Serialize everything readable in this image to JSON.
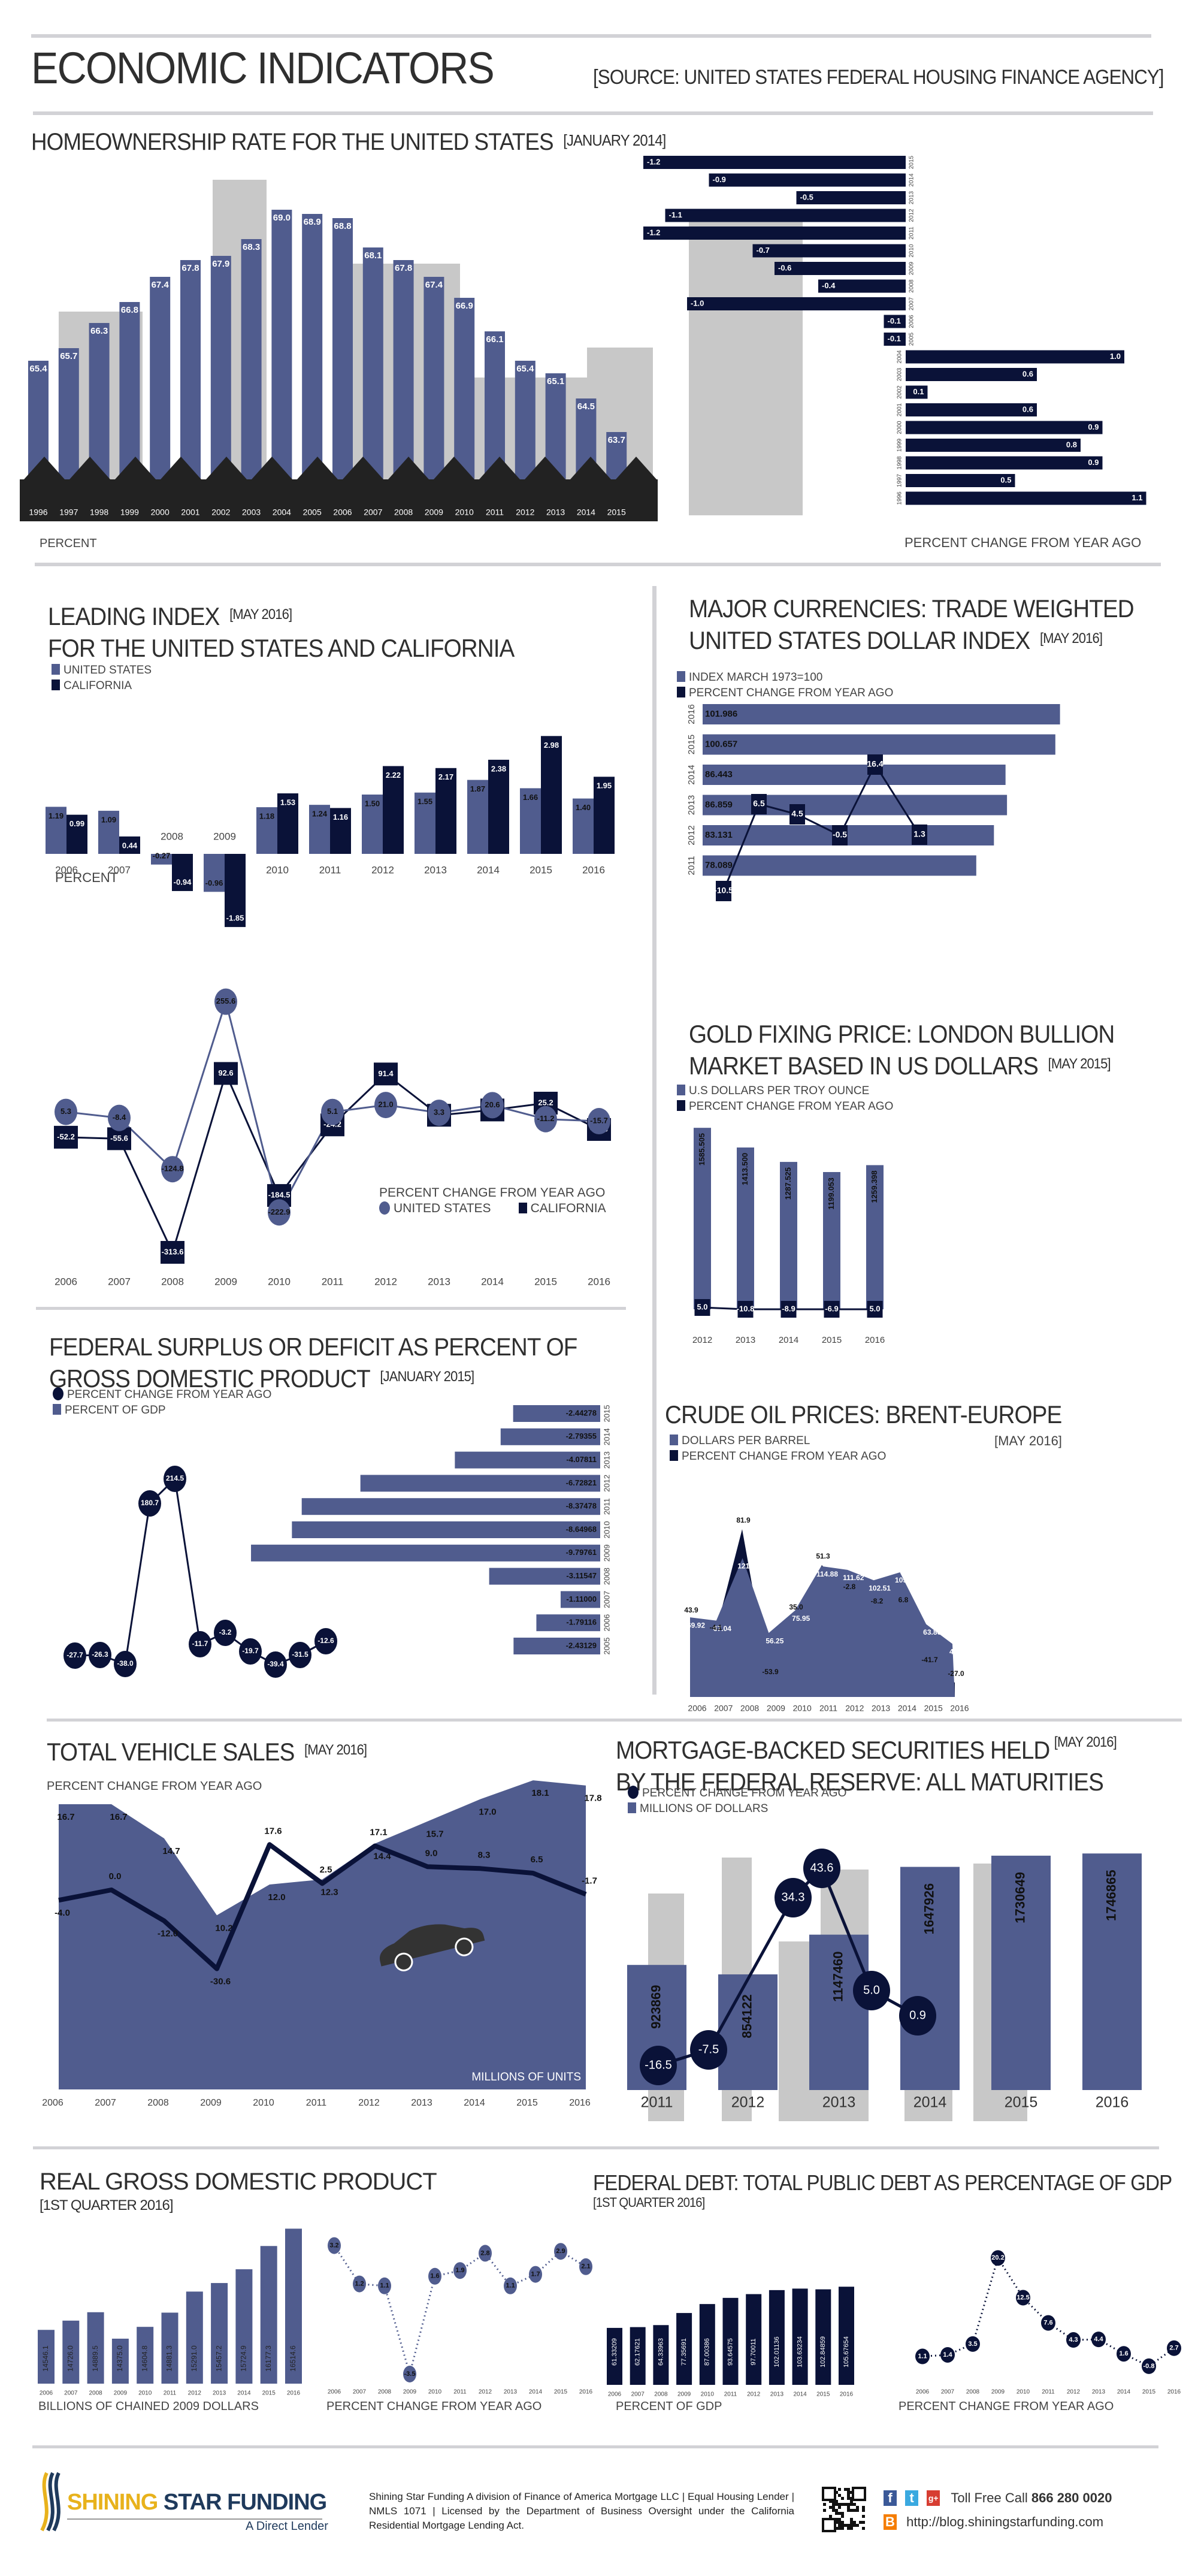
{
  "colors": {
    "light": "#505c8e",
    "dark": "#0a1238",
    "gray": "#c8c8c8",
    "ground": "#222222"
  },
  "header": {
    "title": "ECONOMIC INDICATORS",
    "source": "[SOURCE: UNITED STATES FEDERAL HOUSING FINANCE AGENCY]"
  },
  "homeownership": {
    "title": "HOMEOWNERSHIP RATE FOR THE UNITED STATES",
    "date": "[JANUARY 2014]",
    "left_label": "PERCENT",
    "right_label": "PERCENT CHANGE FROM YEAR AGO"
  },
  "leading": {
    "title_line1": "LEADING INDEX",
    "date": "[MAY 2016]",
    "title_line2": "FOR THE UNITED STATES AND CALIFORNIA",
    "legend": [
      "UNITED STATES",
      "CALIFORNIA"
    ],
    "bar_axis_label": "PERCENT",
    "line_legend_title": "PERCENT CHANGE FROM YEAR AGO",
    "line_legend": [
      "UNITED STATES",
      "CALIFORNIA"
    ]
  },
  "currencies": {
    "title_line1": "MAJOR CURRENCIES: TRADE WEIGHTED",
    "title_line2": "UNITED STATES DOLLAR INDEX",
    "date": "[MAY 2016]",
    "legend": [
      "INDEX MARCH 1973=100",
      "PERCENT CHANGE FROM YEAR AGO"
    ]
  },
  "gold": {
    "title_line1": "GOLD FIXING PRICE: LONDON BULLION",
    "title_line2": "MARKET BASED IN US DOLLARS",
    "date": "[MAY 2015]",
    "legend": [
      "U.S DOLLARS PER TROY OUNCE",
      "PERCENT CHANGE FROM YEAR AGO"
    ]
  },
  "deficit": {
    "title_line1": "FEDERAL SURPLUS OR DEFICIT AS PERCENT OF",
    "title_line2": "GROSS DOMESTIC PRODUCT",
    "date": "[JANUARY 2015]",
    "legend": [
      "PERCENT CHANGE FROM YEAR AGO",
      "PERCENT OF GDP"
    ]
  },
  "oil": {
    "title": "CRUDE OIL PRICES: BRENT-EUROPE",
    "date": "[MAY 2016]",
    "legend": [
      "DOLLARS PER BARREL",
      "PERCENT CHANGE FROM YEAR AGO"
    ]
  },
  "vehicles": {
    "title": "TOTAL VEHICLE SALES",
    "date": "[MAY 2016]",
    "line_label": "PERCENT CHANGE FROM YEAR AGO",
    "area_label": "MILLIONS OF UNITS"
  },
  "mbs": {
    "title_line1": "MORTGAGE-BACKED SECURITIES HELD",
    "date": "[MAY 2016]",
    "title_line2": "BY THE FEDERAL RESERVE: ALL MATURITIES",
    "legend": [
      "PERCENT CHANGE FROM YEAR AGO",
      "MILLIONS OF DOLLARS"
    ]
  },
  "gdp": {
    "title": "REAL GROSS DOMESTIC PRODUCT",
    "date": "[1ST QUARTER 2016]",
    "bar_label": "BILLIONS OF CHAINED 2009 DOLLARS",
    "line_label": "PERCENT CHANGE FROM YEAR AGO"
  },
  "debt": {
    "title": "FEDERAL DEBT: TOTAL PUBLIC DEBT AS PERCENTAGE OF GDP",
    "date": "[1ST QUARTER 2016]",
    "bar_label": "PERCENT OF GDP",
    "line_label": "PERCENT CHANGE FROM YEAR AGO"
  },
  "footer": {
    "logo_word1": "SHINING",
    "logo_word2": "STAR FUNDING",
    "logo_tagline": "A Direct Lender",
    "disclaimer": "Shining Star Funding A division of Finance of America Mortgage LLC | Equal Housing Lender | NMLS 1071 | Licensed by the Department of Business Oversight under the California Residential Mortgage Lending Act.",
    "toll_free_label": "Toll Free Call",
    "phone": "866 280 0020",
    "blog_url": "http://blog.shiningstarfunding.com",
    "icons": [
      "qr-code",
      "facebook-icon",
      "twitter-icon",
      "google-plus-icon",
      "blogger-icon"
    ]
  },
  "chart_data": [
    {
      "id": "homeownership",
      "type": "bar",
      "title": "HOMEOWNERSHIP RATE FOR THE UNITED STATES",
      "categories": [
        "1996",
        "1997",
        "1998",
        "1999",
        "2000",
        "2001",
        "2002",
        "2003",
        "2004",
        "2005",
        "2006",
        "2007",
        "2008",
        "2009",
        "2010",
        "2011",
        "2012",
        "2013",
        "2014",
        "2015"
      ],
      "values": [
        65.4,
        65.7,
        66.3,
        66.8,
        67.4,
        67.8,
        67.9,
        68.3,
        69.0,
        68.9,
        68.8,
        68.1,
        67.8,
        67.4,
        66.9,
        66.1,
        65.4,
        65.1,
        64.5,
        63.7
      ],
      "ylabel": "PERCENT"
    },
    {
      "id": "homeownership_change",
      "type": "bar",
      "orientation": "horizontal",
      "categories": [
        "2015",
        "2014",
        "2013",
        "2012",
        "2011",
        "2010",
        "2009",
        "2008",
        "2007",
        "2006",
        "2005",
        "2004",
        "2003",
        "2002",
        "2001",
        "2000",
        "1999",
        "1998",
        "1997",
        "1996"
      ],
      "values": [
        -1.2,
        -0.9,
        -0.5,
        -1.1,
        -1.2,
        -0.7,
        -0.6,
        -0.4,
        -1.0,
        -0.1,
        -0.1,
        1.0,
        0.6,
        0.1,
        0.6,
        0.9,
        0.8,
        0.9,
        0.5,
        1.1
      ],
      "labels": [
        "-1.2",
        "-0.9",
        "-0.5",
        "-1.1",
        "-1.2",
        "-0.7",
        "-0.6",
        "-0.4",
        "-1.0",
        "-0.1",
        "-0.1",
        "1.0",
        "0.6",
        "0.1",
        "0.6",
        "0.9",
        "0.8",
        "0.9",
        "0.5",
        "1.1"
      ],
      "xlabel": "PERCENT CHANGE FROM YEAR AGO"
    },
    {
      "id": "leading_bars",
      "type": "bar",
      "categories": [
        "2006",
        "2007",
        "2008",
        "2009",
        "2010",
        "2011",
        "2012",
        "2013",
        "2014",
        "2015",
        "2016"
      ],
      "series": [
        {
          "name": "UNITED STATES",
          "values": [
            1.19,
            1.09,
            -0.27,
            -0.96,
            1.18,
            1.24,
            1.5,
            1.55,
            1.87,
            1.66,
            1.4
          ],
          "labels": [
            "1.19",
            "1.09",
            "-0.27",
            "-0.96",
            "1.18",
            "1.24",
            "1.50",
            "1.55",
            "1.87",
            "1.66",
            "1.40"
          ]
        },
        {
          "name": "CALIFORNIA",
          "values": [
            0.99,
            0.44,
            -0.94,
            -1.85,
            1.53,
            1.16,
            2.22,
            2.17,
            2.38,
            2.98,
            1.95
          ],
          "labels": [
            "0.99",
            "0.44",
            "-0.94",
            "-1.85",
            "1.53",
            "1.16",
            "2.22",
            "2.17",
            "2.38",
            "2.98",
            "1.95"
          ]
        }
      ],
      "ylabel": "PERCENT"
    },
    {
      "id": "leading_change",
      "type": "line",
      "categories": [
        "2006",
        "2007",
        "2008",
        "2009",
        "2010",
        "2011",
        "2012",
        "2013",
        "2014",
        "2015",
        "2016"
      ],
      "series": [
        {
          "name": "UNITED STATES",
          "values": [
            5.3,
            -8.4,
            -124.8,
            255.6,
            -222.9,
            5.1,
            21.0,
            3.3,
            20.6,
            -11.2,
            -15.7
          ],
          "labels": [
            "5.3",
            "-8.4",
            "-124.8",
            "255.6",
            "-222.9",
            "5.1",
            "21.0",
            "3.3",
            "20.6",
            "-11.2",
            "-15.7"
          ]
        },
        {
          "name": "CALIFORNIA",
          "values": [
            -52.2,
            -55.6,
            -313.6,
            92.6,
            -184.5,
            -24.2,
            91.4,
            -2.3,
            9.7,
            25.2,
            -34.6
          ],
          "labels": [
            "-52.2",
            "-55.6",
            "-313.6",
            "92.6",
            "-184.5",
            "-24.2",
            "91.4",
            "-2.3",
            "9.7",
            "25.2",
            "-34.6"
          ]
        }
      ]
    },
    {
      "id": "currencies",
      "type": "bar",
      "orientation": "horizontal",
      "categories": [
        "2016",
        "2015",
        "2014",
        "2013",
        "2012",
        "2011"
      ],
      "values": [
        101.986,
        100.657,
        86.443,
        86.859,
        83.131,
        78.089
      ],
      "labels": [
        "101.986",
        "100.657",
        "86.443",
        "86.859",
        "83.131",
        "78.089"
      ],
      "line": {
        "name": "PERCENT CHANGE FROM YEAR AGO",
        "values": [
          -10.5,
          6.5,
          4.5,
          -0.5,
          16.4,
          1.3
        ],
        "labels": [
          "-10.5",
          "6.5",
          "4.5",
          "-0.5",
          "16.4",
          "1.3"
        ]
      }
    },
    {
      "id": "gold",
      "type": "bar",
      "categories": [
        "2012",
        "2013",
        "2014",
        "2015",
        "2016"
      ],
      "values": [
        1585.505,
        1413.5,
        1287.525,
        1199.053,
        1259.398
      ],
      "labels": [
        "1585.505",
        "1413.500",
        "1287.525",
        "1199.053",
        "1259.398"
      ],
      "line": {
        "name": "PERCENT CHANGE FROM YEAR AGO",
        "values": [
          5.0,
          -10.8,
          -8.9,
          -6.9,
          5.0
        ],
        "labels": [
          "5.0",
          "-10.8",
          "-8.9",
          "-6.9",
          "5.0"
        ]
      }
    },
    {
      "id": "deficit",
      "type": "bar",
      "orientation": "horizontal",
      "categories": [
        "2015",
        "2014",
        "2013",
        "2012",
        "2011",
        "2010",
        "2009",
        "2008",
        "2007",
        "2006",
        "2005"
      ],
      "values": [
        -2.44278,
        -2.79355,
        -4.07811,
        -6.72821,
        -8.37478,
        -8.64968,
        -9.79761,
        -3.11547,
        -1.11,
        -1.79116,
        -2.43129
      ],
      "labels": [
        "-2.44278",
        "-2.79355",
        "-4.07811",
        "-6.72821",
        "-8.37478",
        "-8.64968",
        "-9.79761",
        "-3.11547",
        "-1.11000",
        "-1.79116",
        "-2.43129"
      ],
      "line": {
        "name": "PERCENT CHANGE FROM YEAR AGO",
        "values": [
          -27.7,
          -26.3,
          -38.0,
          180.7,
          214.5,
          -11.7,
          -3.2,
          -19.7,
          -39.4,
          -31.5,
          -12.6
        ],
        "labels": [
          "-27.7",
          "-26.3",
          "-38.0",
          "180.7",
          "214.5",
          "-11.7",
          "-3.2",
          "-19.7",
          "-39.4",
          "-31.5",
          "-12.6"
        ]
      }
    },
    {
      "id": "oil",
      "type": "area",
      "categories": [
        "2006",
        "2007",
        "2008",
        "2009",
        "2010",
        "2011",
        "2012",
        "2013",
        "2014",
        "2015",
        "2016"
      ],
      "series": [
        {
          "name": "DOLLARS PER BARREL",
          "values": [
            69.92,
            67.04,
            121.93,
            56.25,
            75.95,
            114.88,
            111.62,
            102.51,
            109.5,
            63.86,
            46.62
          ],
          "labels": [
            "69.92",
            "67.04",
            "121.93",
            "56.25",
            "75.95",
            "114.88",
            "111.62",
            "102.51",
            "109.50",
            "63.86",
            "46.62"
          ]
        },
        {
          "name": "PERCENT CHANGE FROM YEAR AGO",
          "values": [
            43.9,
            -4.1,
            81.9,
            -53.9,
            35.0,
            51.3,
            -2.8,
            -8.2,
            6.8,
            -41.7,
            -27.0
          ],
          "labels": [
            "43.9",
            "-4.1",
            "81.9",
            "-53.9",
            "35.0",
            "51.3",
            "-2.8",
            "-8.2",
            "6.8",
            "-41.7",
            "-27.0"
          ]
        }
      ]
    },
    {
      "id": "vehicles",
      "type": "area",
      "categories": [
        "2006",
        "2007",
        "2008",
        "2009",
        "2010",
        "2011",
        "2012",
        "2013",
        "2014",
        "2015",
        "2016"
      ],
      "series": [
        {
          "name": "MILLIONS OF UNITS",
          "values": [
            16.7,
            16.7,
            14.7,
            10.2,
            12.0,
            12.3,
            14.4,
            15.7,
            17.0,
            18.1,
            17.8
          ],
          "labels": [
            "16.7",
            "16.7",
            "14.7",
            "10.2",
            "12.0",
            "12.3",
            "14.4",
            "15.7",
            "17.0",
            "18.1",
            "17.8"
          ]
        },
        {
          "name": "PERCENT CHANGE FROM YEAR AGO",
          "values": [
            -4.0,
            0.0,
            -12.0,
            -30.6,
            17.6,
            2.5,
            17.1,
            9.0,
            8.3,
            6.5,
            -1.7
          ],
          "labels": [
            "-4.0",
            "0.0",
            "-12.0",
            "-30.6",
            "17.6",
            "2.5",
            "17.1",
            "9.0",
            "8.3",
            "6.5",
            "-1.7"
          ]
        }
      ]
    },
    {
      "id": "mbs",
      "type": "bar",
      "categories": [
        "2011",
        "2012",
        "2013",
        "2014",
        "2015",
        "2016"
      ],
      "values": [
        923869,
        854122,
        1147460,
        1647926,
        1730649,
        1746865
      ],
      "labels": [
        "923869",
        "854122",
        "1147460",
        "1647926",
        "1730649",
        "1746865"
      ],
      "line": {
        "name": "PERCENT CHANGE FROM YEAR AGO",
        "values": [
          -16.5,
          -7.5,
          34.3,
          43.6,
          5.0,
          0.9
        ],
        "labels": [
          "-16.5",
          "-7.5",
          "34.3",
          "43.6",
          "5.0",
          "0.9"
        ]
      }
    },
    {
      "id": "gdp_bars",
      "type": "bar",
      "categories": [
        "2006",
        "2007",
        "2008",
        "2009",
        "2010",
        "2011",
        "2012",
        "2013",
        "2014",
        "2015",
        "2016"
      ],
      "values": [
        14546.1,
        14726.0,
        14889.5,
        14375.0,
        14604.8,
        14881.3,
        15291.0,
        15457.2,
        15724.9,
        16177.3,
        16514.6
      ],
      "labels": [
        "14546.1",
        "14726.0",
        "14889.5",
        "14375.0",
        "14604.8",
        "14881.3",
        "15291.0",
        "15457.2",
        "15724.9",
        "16177.3",
        "16514.6"
      ],
      "ylabel": "BILLIONS OF CHAINED 2009 DOLLARS"
    },
    {
      "id": "gdp_change",
      "type": "line",
      "categories": [
        "2006",
        "2007",
        "2008",
        "2009",
        "2010",
        "2011",
        "2012",
        "2013",
        "2014",
        "2015",
        "2016"
      ],
      "values": [
        3.2,
        1.2,
        1.1,
        -3.5,
        1.6,
        1.9,
        2.8,
        1.1,
        1.7,
        2.9,
        2.1
      ],
      "labels": [
        "3.2",
        "1.2",
        "1.1",
        "-3.5",
        "1.6",
        "1.9",
        "2.8",
        "1.1",
        "1.7",
        "2.9",
        "2.1"
      ]
    },
    {
      "id": "debt_bars",
      "type": "bar",
      "categories": [
        "2006",
        "2007",
        "2008",
        "2009",
        "2010",
        "2011",
        "2012",
        "2013",
        "2014",
        "2015",
        "2016"
      ],
      "values": [
        61.33209,
        62.17621,
        64.33963,
        77.35691,
        87.00386,
        93.64575,
        97.70011,
        102.01136,
        103.63234,
        102.84859,
        105.67654
      ],
      "labels": [
        "61.33209",
        "62.17621",
        "64.33963",
        "77.35691",
        "87.00386",
        "93.64575",
        "97.70011",
        "102.01136",
        "103.63234",
        "102.84859",
        "105.67654"
      ],
      "ylabel": "PERCENT OF GDP"
    },
    {
      "id": "debt_change",
      "type": "line",
      "categories": [
        "2006",
        "2007",
        "2008",
        "2009",
        "2010",
        "2011",
        "2012",
        "2013",
        "2014",
        "2015",
        "2016"
      ],
      "values": [
        1.1,
        1.4,
        3.5,
        20.2,
        12.5,
        7.6,
        4.3,
        4.4,
        1.6,
        -0.8,
        2.7
      ],
      "labels": [
        "1.1",
        "1.4",
        "3.5",
        "20.2",
        "12.5",
        "7.6",
        "4.3",
        "4.4",
        "1.6",
        "-0.8",
        "2.7"
      ]
    }
  ]
}
